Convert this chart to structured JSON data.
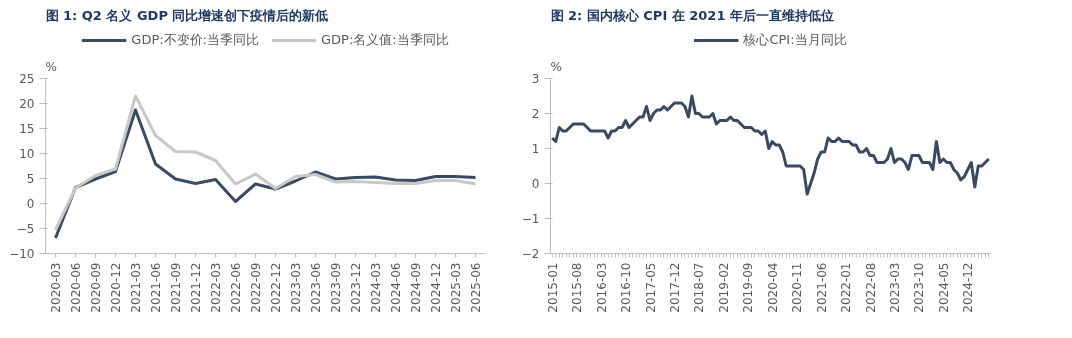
{
  "chart_data": [
    {
      "type": "line",
      "title": "图 1:  Q2 名义 GDP 同比增速创下疫情后的新低",
      "ylabel": "%",
      "categories": [
        "2020-03",
        "2020-06",
        "2020-09",
        "2020-12",
        "2021-03",
        "2021-06",
        "2021-09",
        "2021-12",
        "2022-03",
        "2022-06",
        "2022-09",
        "2022-12",
        "2023-03",
        "2023-06",
        "2023-09",
        "2023-12",
        "2024-03",
        "2024-06",
        "2024-09",
        "2024-12",
        "2025-03",
        "2025-06"
      ],
      "series": [
        {
          "name": "GDP:不变价:当季同比",
          "color": "#3b4a63",
          "values": [
            -6.9,
            3.2,
            4.9,
            6.4,
            18.7,
            7.9,
            4.9,
            4.0,
            4.8,
            0.4,
            3.9,
            2.9,
            4.5,
            6.3,
            4.9,
            5.2,
            5.3,
            4.7,
            4.6,
            5.4,
            5.4,
            5.2
          ]
        },
        {
          "name": "GDP:名义值:当季同比",
          "color": "#c8c8c8",
          "values": [
            -5.3,
            3.1,
            5.6,
            6.9,
            21.5,
            13.6,
            10.4,
            10.3,
            8.6,
            3.9,
            5.9,
            3.0,
            5.4,
            5.8,
            4.3,
            4.4,
            4.2,
            4.0,
            4.0,
            4.6,
            4.6,
            3.9
          ]
        }
      ],
      "ylim": [
        -10,
        25
      ],
      "yticks": [
        -10,
        -5,
        0,
        5,
        10,
        15,
        20,
        25
      ],
      "legend": "top",
      "grid": false
    },
    {
      "type": "line",
      "title": "图 2:  国内核心 CPI 在 2021 年后一直维持低位",
      "ylabel": "%",
      "categories": [
        "2015-01",
        null,
        null,
        null,
        null,
        null,
        null,
        "2015-08",
        null,
        null,
        null,
        null,
        null,
        null,
        "2016-03",
        null,
        null,
        null,
        null,
        null,
        null,
        "2016-10",
        null,
        null,
        null,
        null,
        null,
        null,
        "2017-05",
        null,
        null,
        null,
        null,
        null,
        null,
        "2017-12",
        null,
        null,
        null,
        null,
        null,
        null,
        "2018-07",
        null,
        null,
        null,
        null,
        null,
        null,
        "2019-02",
        null,
        null,
        null,
        null,
        null,
        null,
        "2019-09",
        null,
        null,
        null,
        null,
        null,
        null,
        "2020-04",
        null,
        null,
        null,
        null,
        null,
        null,
        "2020-11",
        null,
        null,
        null,
        null,
        null,
        null,
        "2021-06",
        null,
        null,
        null,
        null,
        null,
        null,
        "2022-01",
        null,
        null,
        null,
        null,
        null,
        null,
        "2022-08",
        null,
        null,
        null,
        null,
        null,
        null,
        "2023-03",
        null,
        null,
        null,
        null,
        null,
        null,
        "2023-10",
        null,
        null,
        null,
        null,
        null,
        null,
        "2024-05",
        null,
        null,
        null,
        null,
        null,
        null,
        "2024-12",
        null,
        null,
        null,
        null,
        null,
        null
      ],
      "series": [
        {
          "name": "核心CPI:当月同比",
          "color": "#3b4a63",
          "values": [
            1.3,
            1.2,
            1.6,
            1.5,
            1.5,
            1.6,
            1.7,
            1.7,
            1.7,
            1.7,
            1.6,
            1.5,
            1.5,
            1.5,
            1.5,
            1.5,
            1.3,
            1.5,
            1.5,
            1.6,
            1.6,
            1.8,
            1.6,
            1.7,
            1.8,
            1.9,
            1.9,
            2.2,
            1.8,
            2.0,
            2.1,
            2.1,
            2.2,
            2.1,
            2.2,
            2.3,
            2.3,
            2.3,
            2.2,
            1.9,
            2.5,
            2.0,
            2.0,
            1.9,
            1.9,
            1.9,
            2.0,
            1.7,
            1.8,
            1.8,
            1.8,
            1.9,
            1.8,
            1.8,
            1.7,
            1.6,
            1.6,
            1.6,
            1.5,
            1.5,
            1.4,
            1.5,
            1.0,
            1.2,
            1.1,
            1.1,
            0.9,
            0.5,
            0.5,
            0.5,
            0.5,
            0.5,
            0.4,
            -0.3,
            0.0,
            0.3,
            0.7,
            0.9,
            0.9,
            1.3,
            1.2,
            1.2,
            1.3,
            1.2,
            1.2,
            1.2,
            1.1,
            1.1,
            0.9,
            0.9,
            1.0,
            0.8,
            0.8,
            0.6,
            0.6,
            0.6,
            0.7,
            1.0,
            0.6,
            0.7,
            0.7,
            0.6,
            0.4,
            0.8,
            0.8,
            0.8,
            0.6,
            0.6,
            0.6,
            0.4,
            1.2,
            0.6,
            0.7,
            0.6,
            0.6,
            0.4,
            0.3,
            0.1,
            0.2,
            0.4,
            0.6,
            -0.1,
            0.5,
            0.5,
            0.6,
            0.7
          ]
        }
      ],
      "ylim": [
        -2,
        3
      ],
      "yticks": [
        -2,
        -1,
        0,
        1,
        2,
        3
      ],
      "legend": "top",
      "grid": false
    }
  ]
}
